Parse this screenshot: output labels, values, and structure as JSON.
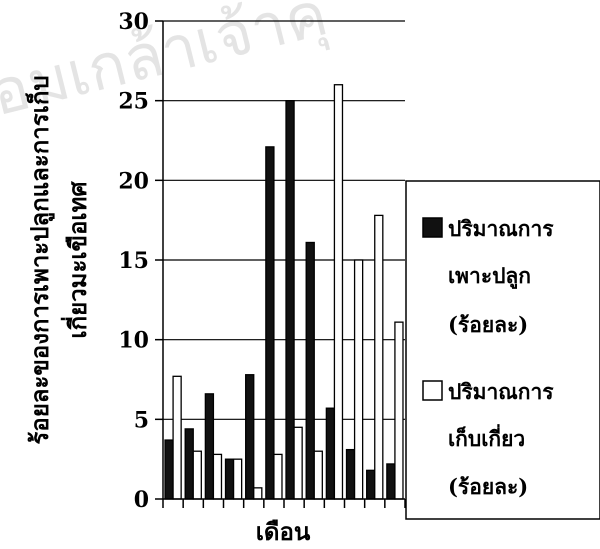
{
  "watermark_text": "อมเกล้าเจ้าคุ",
  "chart_data": {
    "type": "bar",
    "xlabel": "เดือน",
    "ylabel_lines": [
      "ร้อยละของการเพาะปลูกและการเก็บ",
      "เกี่ยวมะเขือเทศ"
    ],
    "ylim": [
      0,
      30
    ],
    "yticks": [
      0,
      5,
      10,
      15,
      20,
      25,
      30
    ],
    "grid": "horizontal",
    "legend_position": "right",
    "categories": [
      "",
      "",
      "",
      "",
      "",
      "",
      "",
      "",
      "",
      "",
      "",
      ""
    ],
    "series": [
      {
        "name_lines": [
          "ปริมาณการ",
          "เพาะปลูก",
          "(ร้อยละ)"
        ],
        "color": "#111111",
        "values": [
          3.7,
          4.4,
          6.6,
          2.5,
          7.8,
          22.1,
          25.0,
          16.1,
          5.7,
          3.1,
          1.8,
          2.2
        ]
      },
      {
        "name_lines": [
          "ปริมาณการ",
          "เก็บเกี่ยว",
          "(ร้อยละ)"
        ],
        "color": "#ffffff",
        "values": [
          7.7,
          3.0,
          2.8,
          2.5,
          0.7,
          2.8,
          4.5,
          3.0,
          26.0,
          15.0,
          17.8,
          11.1
        ]
      }
    ]
  }
}
